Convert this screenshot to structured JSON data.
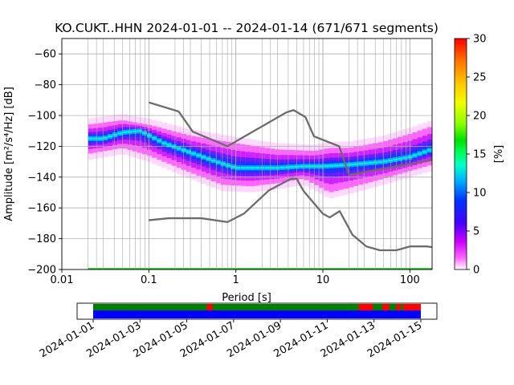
{
  "chart_data": {
    "type": "heatmap",
    "title": "KO.CUKT..HHN   2024-01-01 -- 2024-01-14  (671/671 segments)",
    "xlabel": "Period [s]",
    "ylabel": "Amplitude [m²/s⁴/Hz] [dB]",
    "xscale": "log",
    "xlim": [
      0.01,
      180
    ],
    "ylim": [
      -200,
      -50
    ],
    "x_ticks": [
      {
        "v": 0.01,
        "label": "0.01"
      },
      {
        "v": 0.1,
        "label": "0.1"
      },
      {
        "v": 1,
        "label": "1"
      },
      {
        "v": 10,
        "label": "10"
      },
      {
        "v": 100,
        "label": "100"
      }
    ],
    "y_ticks": [
      {
        "v": -60,
        "label": "−60"
      },
      {
        "v": -80,
        "label": "−80"
      },
      {
        "v": -100,
        "label": "−100"
      },
      {
        "v": -120,
        "label": "−120"
      },
      {
        "v": -140,
        "label": "−140"
      },
      {
        "v": -160,
        "label": "−160"
      },
      {
        "v": -180,
        "label": "−180"
      },
      {
        "v": -200,
        "label": "−200"
      }
    ],
    "grid": true,
    "period_grid_lines": [
      0.02,
      0.025,
      0.03,
      0.04,
      0.05,
      0.06,
      0.07,
      0.08,
      0.09,
      0.1,
      0.2,
      0.25,
      0.3,
      0.4,
      0.5,
      0.6,
      0.7,
      0.8,
      0.9,
      1,
      2,
      2.5,
      3,
      4,
      5,
      6,
      7,
      8,
      9,
      10,
      20,
      25,
      30,
      40,
      50,
      60,
      70,
      80,
      90,
      100
    ],
    "noise_model_high": [
      [
        0.1,
        -91.5
      ],
      [
        0.22,
        -97.4
      ],
      [
        0.32,
        -110.5
      ],
      [
        0.8,
        -120
      ],
      [
        3.8,
        -98
      ],
      [
        4.6,
        -96.5
      ],
      [
        6.3,
        -101
      ],
      [
        7.9,
        -113.5
      ],
      [
        15.4,
        -120
      ],
      [
        20,
        -138.5
      ],
      [
        354,
        -126
      ]
    ],
    "noise_model_low": [
      [
        0.1,
        -168
      ],
      [
        0.17,
        -166.7
      ],
      [
        0.4,
        -166.7
      ],
      [
        0.8,
        -169.2
      ],
      [
        1.24,
        -163.7
      ],
      [
        2.4,
        -148.6
      ],
      [
        4.3,
        -141.1
      ],
      [
        5,
        -141.1
      ],
      [
        6,
        -149
      ],
      [
        10,
        -163.8
      ],
      [
        12,
        -166.2
      ],
      [
        15.6,
        -162.1
      ],
      [
        21.9,
        -177.5
      ],
      [
        31.6,
        -185
      ],
      [
        45,
        -187.5
      ],
      [
        70,
        -187.5
      ],
      [
        101,
        -185
      ],
      [
        154,
        -185
      ],
      [
        178,
        -185.4
      ]
    ],
    "psd_mode": [
      [
        0.02,
        -115
      ],
      [
        0.03,
        -115
      ],
      [
        0.05,
        -111
      ],
      [
        0.08,
        -110
      ],
      [
        0.15,
        -118
      ],
      [
        0.3,
        -124
      ],
      [
        0.6,
        -130
      ],
      [
        1,
        -134
      ],
      [
        3,
        -134
      ],
      [
        6,
        -133
      ],
      [
        10,
        -133
      ],
      [
        20,
        -132
      ],
      [
        50,
        -130
      ],
      [
        100,
        -127
      ],
      [
        180,
        -122
      ]
    ],
    "psd_upper": [
      [
        0.02,
        -106
      ],
      [
        0.05,
        -103
      ],
      [
        0.1,
        -106
      ],
      [
        0.3,
        -113
      ],
      [
        1,
        -118
      ],
      [
        3,
        -122
      ],
      [
        8,
        -123
      ],
      [
        12,
        -121
      ],
      [
        20,
        -121
      ],
      [
        50,
        -117
      ],
      [
        100,
        -112
      ],
      [
        180,
        -107
      ]
    ],
    "psd_lower": [
      [
        0.02,
        -125
      ],
      [
        0.05,
        -121
      ],
      [
        0.1,
        -126
      ],
      [
        0.3,
        -137
      ],
      [
        0.7,
        -145
      ],
      [
        1.5,
        -146
      ],
      [
        3,
        -144
      ],
      [
        6,
        -141
      ],
      [
        9,
        -146
      ],
      [
        12,
        -150
      ],
      [
        20,
        -147
      ],
      [
        50,
        -141
      ],
      [
        100,
        -136
      ],
      [
        180,
        -132
      ]
    ],
    "colorbar": {
      "label": "[%]",
      "min": 0,
      "max": 30,
      "ticks": [
        {
          "v": 0,
          "label": "0"
        },
        {
          "v": 5,
          "label": "5"
        },
        {
          "v": 10,
          "label": "10"
        },
        {
          "v": 15,
          "label": "15"
        },
        {
          "v": 20,
          "label": "20"
        },
        {
          "v": 25,
          "label": "25"
        },
        {
          "v": 30,
          "label": "30"
        }
      ]
    },
    "timeline": {
      "date_labels": [
        "2024-01-01",
        "2024-01-03",
        "2024-01-05",
        "2024-01-07",
        "2024-01-09",
        "2024-01-11",
        "2024-01-13",
        "2024-01-15"
      ],
      "start_day": 0,
      "end_day": 14,
      "coverage_color": "#0000ff",
      "status_colors": {
        "ok": "#008000",
        "flag": "#ff0000"
      },
      "flag_segments": [
        [
          4.85,
          5.1
        ],
        [
          11.35,
          11.95
        ],
        [
          12.35,
          12.65
        ],
        [
          12.95,
          13.15
        ],
        [
          13.25,
          14.0
        ]
      ]
    }
  }
}
